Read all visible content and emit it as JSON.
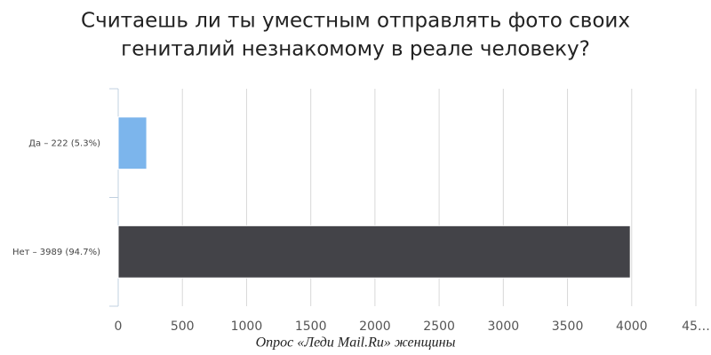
{
  "chart_data": {
    "type": "hbar",
    "title": [
      "Считаешь ли ты уместным отправлять фото своих",
      "гениталий незнакомому в реале человеку?"
    ],
    "categories": [
      "Да – 222 (5.3%)",
      "Нет – 3989 (94.7%)"
    ],
    "values": [
      222,
      3989
    ],
    "colors": [
      "#7cb5ec",
      "#434348"
    ],
    "xlim": [
      0,
      4500
    ],
    "xticks": [
      0,
      500,
      1000,
      1500,
      2000,
      2500,
      3000,
      3500,
      4000,
      {
        "value": 4500,
        "label": "45…"
      }
    ],
    "grid": true,
    "source": "Опрос «Леди Mail.Ru» женщины"
  }
}
